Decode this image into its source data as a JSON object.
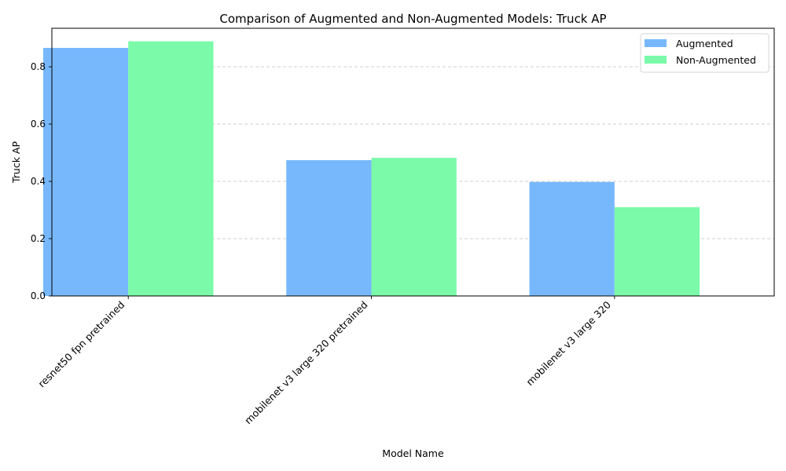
{
  "chart_data": {
    "type": "bar",
    "title": "Comparison of Augmented and Non-Augmented Models: Truck AP",
    "xlabel": "Model Name",
    "ylabel": "Truck AP",
    "categories": [
      "resnet50 fpn pretrained",
      "mobilenet v3 large 320 pretrained",
      "mobilenet v3 large 320"
    ],
    "series": [
      {
        "name": "Augmented",
        "values": [
          0.866,
          0.474,
          0.398
        ],
        "color": "#77b8fc"
      },
      {
        "name": "Non-Augmented",
        "values": [
          0.889,
          0.482,
          0.31
        ],
        "color": "#7bfaa9"
      }
    ],
    "ylim": [
      0,
      0.9345
    ],
    "yticks": [
      0.0,
      0.2,
      0.4,
      0.6,
      0.8
    ],
    "ytick_labels": [
      "0.0",
      "0.2",
      "0.4",
      "0.6",
      "0.8"
    ],
    "grid": "y-dashed",
    "legend_position": "top-right"
  }
}
